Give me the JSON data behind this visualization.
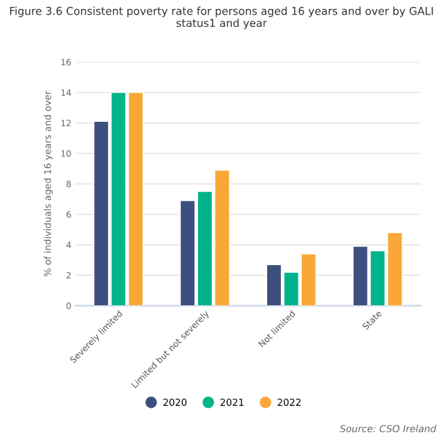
{
  "chart_data": {
    "type": "bar",
    "title": "Figure 3.6 Consistent poverty rate for persons aged 16 years and over by GALI status1 and year",
    "ylabel": "% of individuals aged 16 years and over",
    "categories": [
      "Severely limited",
      "Limited but not severely",
      "Not limited",
      "State"
    ],
    "series": [
      {
        "name": "2020",
        "color": "#3d4f7c",
        "values": [
          12.1,
          6.9,
          2.7,
          3.9
        ]
      },
      {
        "name": "2021",
        "color": "#00b38a",
        "values": [
          14.0,
          7.5,
          2.2,
          3.6
        ]
      },
      {
        "name": "2022",
        "color": "#f9a737",
        "values": [
          14.0,
          8.9,
          3.4,
          4.8
        ]
      }
    ],
    "ylim": [
      0,
      16
    ],
    "yticks": [
      0,
      2,
      4,
      6,
      8,
      10,
      12,
      14,
      16
    ],
    "grid": "y",
    "legend": "bottom",
    "annotations": [
      "Source: CSO Ireland"
    ]
  }
}
